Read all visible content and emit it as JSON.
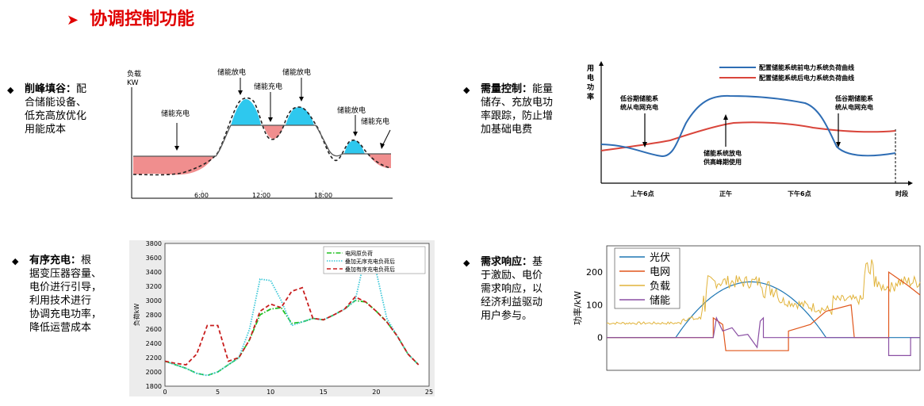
{
  "title": "协调控制功能",
  "bullets": [
    {
      "head": "削峰填谷：",
      "body": "配合储能设备、低充高放优化用能成本",
      "line1_rest": "配",
      "lines": [
        "合储能设备、",
        "低充高放优化",
        "用能成本"
      ]
    },
    {
      "head": "需量控制：",
      "line1_rest": "能量",
      "lines": [
        "储存、充放电功",
        "率跟踪，防止增",
        "加基础电费"
      ]
    },
    {
      "head": "有序充电：",
      "line1_rest": "根",
      "lines": [
        "据变压器容量、",
        "电价进行引导，",
        "利用技术进行",
        "协调充电功率，",
        "降低运营成本"
      ]
    },
    {
      "head": "需求响应：",
      "line1_rest": "基",
      "lines": [
        "于激励、电价",
        "需求响应，以",
        "经济利益驱动",
        "用户参与。"
      ]
    }
  ],
  "chart1": {
    "ylabel1": "负载",
    "ylabel2": "KW",
    "labels": {
      "charge1": "储能充电",
      "discharge1": "储能放电",
      "charge2": "储能充电",
      "discharge2": "储能放电",
      "discharge3": "储能放电",
      "charge3": "储能充电"
    },
    "ticks": [
      "6:00",
      "12:00",
      "18:00"
    ]
  },
  "chart2": {
    "ylabel_lines": [
      "用",
      "电",
      "功",
      "率"
    ],
    "legend": [
      "配置储能系统前电力系统负荷曲线",
      "配置储能系统后电力系统负荷曲线"
    ],
    "ann_left": [
      "低谷期储能系",
      "统从电网充电"
    ],
    "ann_right": [
      "低谷期储能系",
      "统从电网充电"
    ],
    "ann_mid": [
      "储能系统放电",
      "供高峰期使用"
    ],
    "xticks": [
      "上午6点",
      "正午",
      "下午6点",
      "时段"
    ],
    "colors": {
      "before": "#2e6db4",
      "after": "#d9453b"
    }
  },
  "chart_data": [
    {
      "type": "line",
      "ylabel": "负荷kW",
      "legend": [
        "电网原负荷",
        "叠加无序充电负荷后",
        "叠加有序充电负荷后"
      ],
      "ylim": [
        1800,
        3800
      ],
      "xlim": [
        0,
        25
      ],
      "x_ticks": [
        0,
        5,
        10,
        15,
        20,
        25
      ],
      "y_ticks": [
        1800,
        2000,
        2200,
        2400,
        2600,
        2800,
        3000,
        3200,
        3400,
        3600,
        3800
      ],
      "x": [
        0,
        1,
        2,
        3,
        4,
        5,
        6,
        7,
        8,
        9,
        10,
        11,
        12,
        13,
        14,
        15,
        16,
        17,
        18,
        19,
        20,
        21,
        22,
        23,
        24
      ],
      "series": [
        {
          "name": "电网原负荷",
          "color": "#22c022",
          "values": [
            2150,
            2100,
            2050,
            1980,
            1950,
            2000,
            2100,
            2200,
            2450,
            2800,
            2880,
            2900,
            2680,
            2700,
            2750,
            2730,
            2800,
            2880,
            3000,
            2980,
            2850,
            2700,
            2500,
            2250,
            2100
          ]
        },
        {
          "name": "叠加无序充电负荷后",
          "color": "#3cc8d8",
          "values": [
            2150,
            2100,
            2050,
            1980,
            1950,
            2000,
            2100,
            2200,
            2600,
            3300,
            3280,
            3000,
            2650,
            2700,
            2750,
            2730,
            2800,
            2880,
            3000,
            3650,
            3400,
            2750,
            2500,
            2250,
            2100
          ]
        },
        {
          "name": "叠加有序充电负荷后",
          "color": "#c81e1e",
          "values": [
            2150,
            2120,
            2100,
            2250,
            2650,
            2650,
            2150,
            2200,
            2450,
            2850,
            2950,
            2900,
            3130,
            3180,
            2750,
            2730,
            2800,
            2880,
            3050,
            2980,
            2850,
            2700,
            2500,
            2250,
            2100
          ]
        }
      ]
    },
    {
      "type": "line",
      "ylabel": "功率/kW",
      "legend": [
        "光伏",
        "电网",
        "负载",
        "储能"
      ],
      "ylim": [
        -100,
        280
      ],
      "y_ticks": [
        0,
        100,
        200
      ],
      "series": [
        {
          "name": "光伏",
          "color": "#1f77b4"
        },
        {
          "name": "电网",
          "color": "#e0561b"
        },
        {
          "name": "负载",
          "color": "#e1b33a"
        },
        {
          "name": "储能",
          "color": "#8a4fa3"
        }
      ]
    }
  ]
}
